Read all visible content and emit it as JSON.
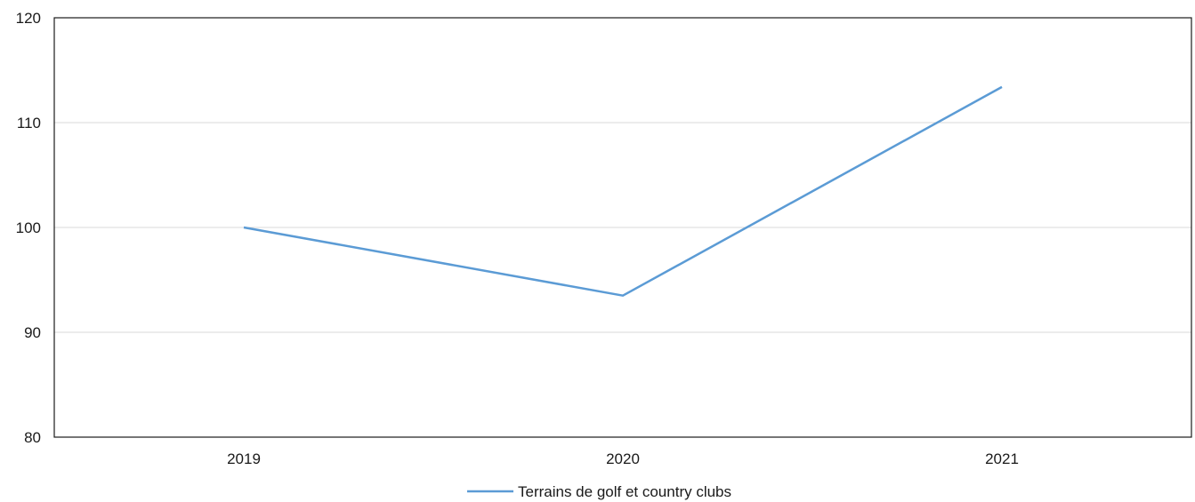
{
  "chart_data": {
    "type": "line",
    "categories": [
      "2019",
      "2020",
      "2021"
    ],
    "series": [
      {
        "name": "Terrains de golf et country clubs",
        "values": [
          100,
          93.5,
          113.4
        ],
        "color": "#5b9bd5"
      }
    ],
    "y_ticks": [
      "80",
      "90",
      "100",
      "110",
      "120"
    ],
    "ylim": [
      80,
      120
    ],
    "grid": true,
    "legend_position": "bottom-center"
  }
}
